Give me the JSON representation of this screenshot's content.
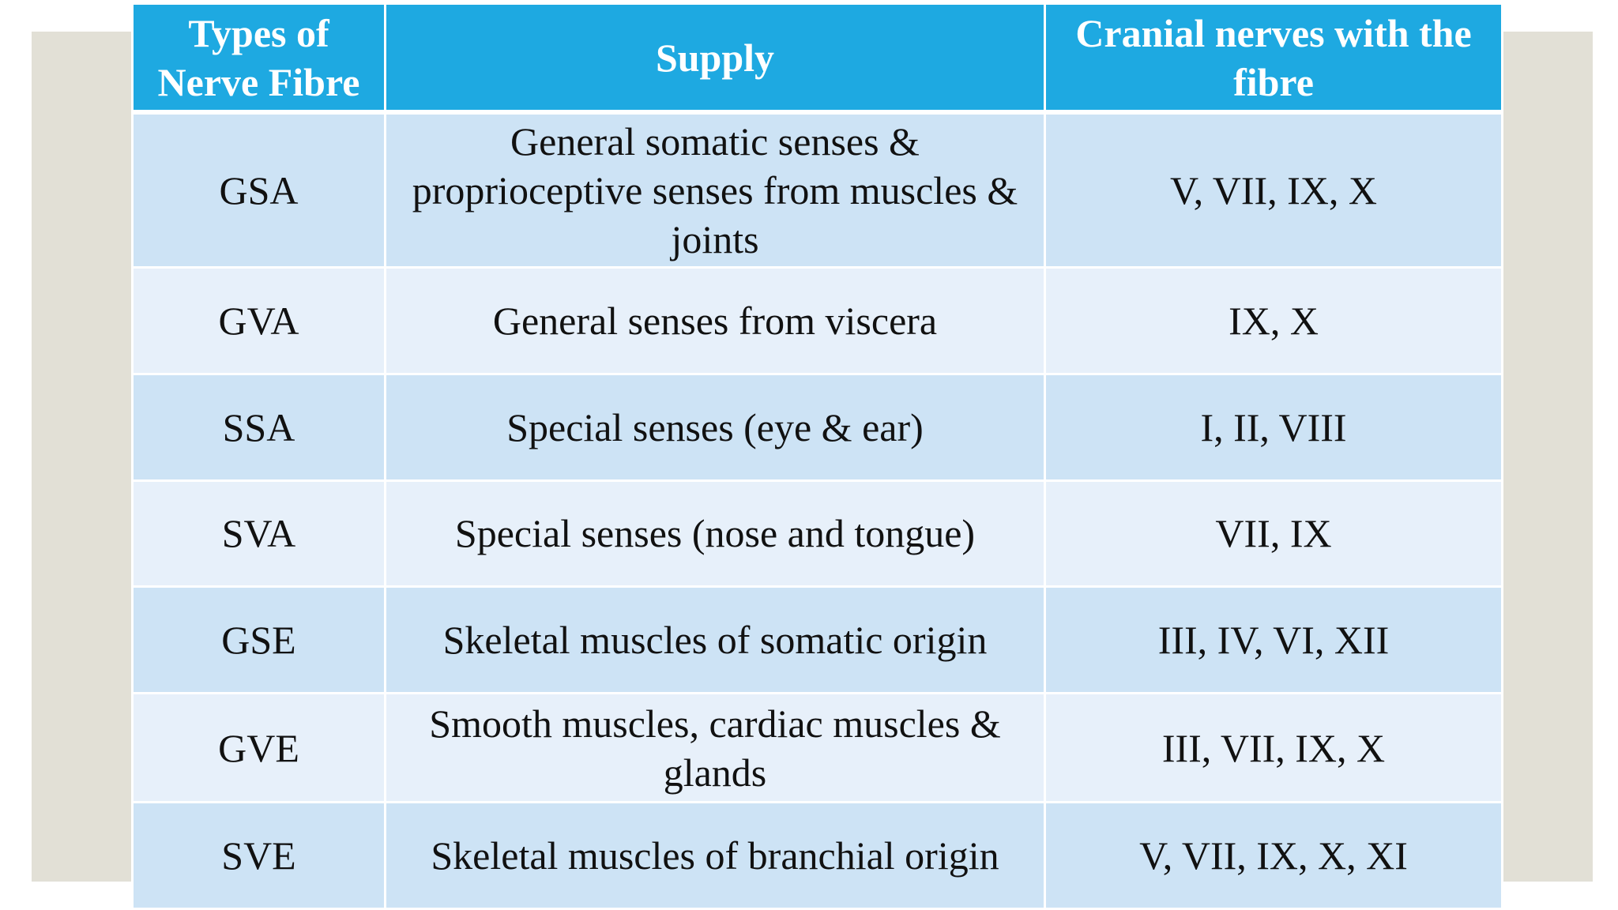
{
  "table": {
    "headers": [
      "Types of Nerve Fibre",
      "Supply",
      "Cranial nerves with the fibre"
    ],
    "rows": [
      {
        "type": "GSA",
        "supply": "General somatic senses & proprioceptive senses from muscles & joints",
        "nerves": "V, VII, IX, X"
      },
      {
        "type": "GVA",
        "supply": "General senses from viscera",
        "nerves": "IX, X"
      },
      {
        "type": "SSA",
        "supply": "Special senses (eye & ear)",
        "nerves": "I, II, VIII"
      },
      {
        "type": "SVA",
        "supply": "Special senses (nose and tongue)",
        "nerves": "VII, IX"
      },
      {
        "type": "GSE",
        "supply": "Skeletal muscles of somatic origin",
        "nerves": "III, IV, VI, XII"
      },
      {
        "type": "GVE",
        "supply": "Smooth muscles, cardiac muscles & glands",
        "nerves": "III, VII, IX, X"
      },
      {
        "type": "SVE",
        "supply": "Skeletal muscles of branchial origin",
        "nerves": "V, VII, IX, X, XI"
      }
    ]
  },
  "colors": {
    "header_bg": "#1ea9e1",
    "header_text": "#ffffff",
    "row_odd_bg": "#cde3f5",
    "row_even_bg": "#e7f0fa",
    "backdrop": "#e2e0d6"
  }
}
